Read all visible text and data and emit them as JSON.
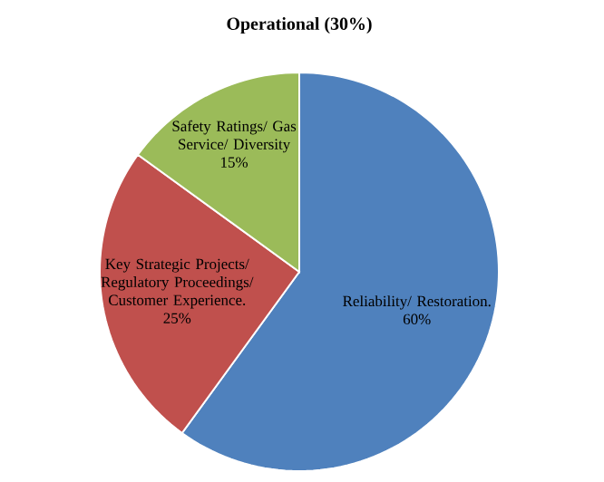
{
  "chart_data": {
    "type": "pie",
    "title": "Operational (30%)",
    "categories": [
      "Reliability/ Restoration.",
      "Key Strategic Projects/ Regulatory Proceedings/ Customer Experience.",
      "Safety Ratings/ Gas Service/ Diversity"
    ],
    "values": [
      60,
      25,
      15
    ],
    "value_labels": [
      "60%",
      "25%",
      "15%"
    ],
    "colors": [
      "#4f81bd",
      "#c0504d",
      "#9bbb59"
    ]
  }
}
